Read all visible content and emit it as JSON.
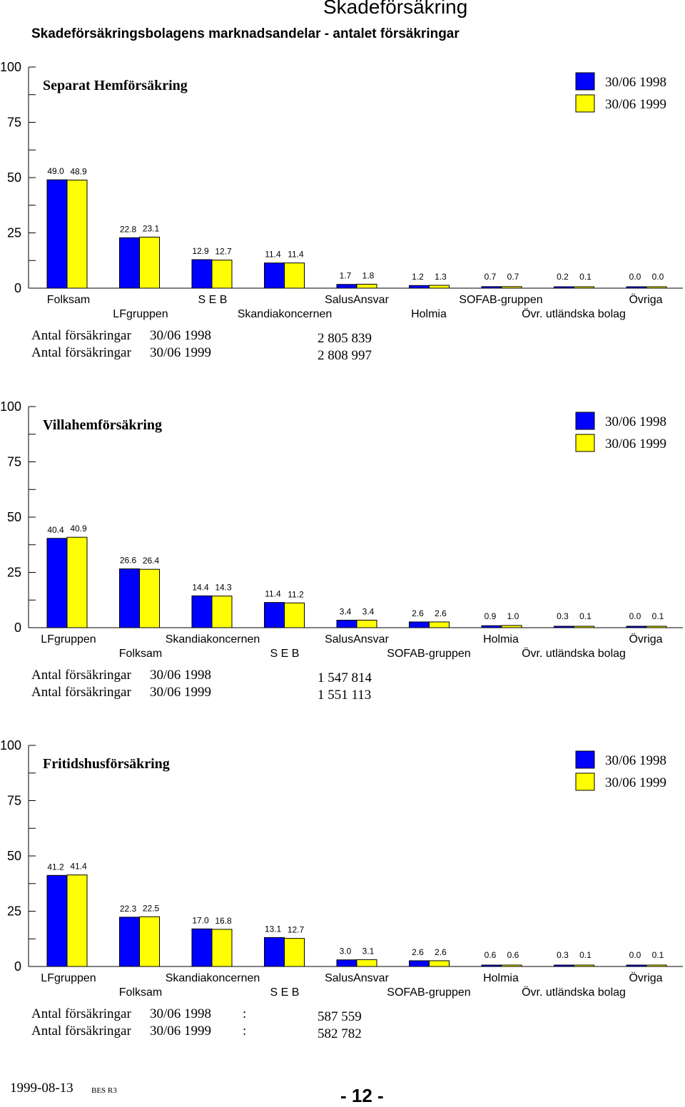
{
  "page": {
    "title": "Skadeförsäkring",
    "subtitle": "Skadeförsäkringsbolagens marknadsandelar - antalet försäkringar",
    "footer_date": "1999-08-13",
    "footer_code": "BES R3",
    "page_number": "- 12 -"
  },
  "colors": {
    "series_1998": "#0000ff",
    "series_1999": "#ffff00",
    "outline": "#000000"
  },
  "chart_data": [
    {
      "type": "bar",
      "title": "Separat Hemförsäkring",
      "ylim": [
        0,
        100
      ],
      "yticks": [
        "0",
        "25",
        "50",
        "75",
        "100"
      ],
      "categories": [
        "Folksam",
        "LFgruppen",
        "S E B",
        "Skandiakoncernen",
        "SalusAnsvar",
        "Holmia",
        "SOFAB-gruppen",
        "Övr. utländska bolag",
        "Övriga"
      ],
      "series": [
        {
          "name": "30/06 1998",
          "values": [
            49.0,
            22.8,
            12.9,
            11.4,
            1.7,
            1.2,
            0.7,
            0.2,
            0.0
          ]
        },
        {
          "name": "30/06 1999",
          "values": [
            48.9,
            23.1,
            12.7,
            11.4,
            1.8,
            1.3,
            0.7,
            0.1,
            0.0
          ]
        }
      ],
      "value_labels": {
        "s1998": [
          "49.0",
          "22.8",
          "12.9",
          "11.4",
          "1.7",
          "1.2",
          "0.7",
          "0.2",
          "0.0"
        ],
        "s1999": [
          "48.9",
          "23.1",
          "12.7",
          "11.4",
          "1.8",
          "1.3",
          "0.7",
          "0.1",
          "0.0"
        ]
      },
      "counts": [
        {
          "label": "Antal försäkringar",
          "date": "30/06 1998",
          "colon": "",
          "value": "2 805 839"
        },
        {
          "label": "Antal försäkringar",
          "date": "30/06 1999",
          "colon": "",
          "value": "2 808 997"
        }
      ]
    },
    {
      "type": "bar",
      "title": "Villahemförsäkring",
      "ylim": [
        0,
        100
      ],
      "yticks": [
        "0",
        "25",
        "50",
        "75",
        "100"
      ],
      "categories": [
        "LFgruppen",
        "Folksam",
        "Skandiakoncernen",
        "S E B",
        "SalusAnsvar",
        "SOFAB-gruppen",
        "Holmia",
        "Övr. utländska bolag",
        "Övriga"
      ],
      "series": [
        {
          "name": "30/06 1998",
          "values": [
            40.4,
            26.6,
            14.4,
            11.4,
            3.4,
            2.6,
            0.9,
            0.3,
            0.0
          ]
        },
        {
          "name": "30/06 1999",
          "values": [
            40.9,
            26.4,
            14.3,
            11.2,
            3.4,
            2.6,
            1.0,
            0.1,
            0.1
          ]
        }
      ],
      "value_labels": {
        "s1998": [
          "40.4",
          "26.6",
          "14.4",
          "11.4",
          "3.4",
          "2.6",
          "0.9",
          "0.3",
          "0.0"
        ],
        "s1999": [
          "40.9",
          "26.4",
          "14.3",
          "11.2",
          "3.4",
          "2.6",
          "1.0",
          "0.1",
          "0.1"
        ]
      },
      "counts": [
        {
          "label": "Antal försäkringar",
          "date": "30/06 1998",
          "colon": "",
          "value": "1 547 814"
        },
        {
          "label": "Antal försäkringar",
          "date": "30/06 1999",
          "colon": "",
          "value": "1 551 113"
        }
      ]
    },
    {
      "type": "bar",
      "title": "Fritidshusförsäkring",
      "ylim": [
        0,
        100
      ],
      "yticks": [
        "0",
        "25",
        "50",
        "75",
        "100"
      ],
      "categories": [
        "LFgruppen",
        "Folksam",
        "Skandiakoncernen",
        "S E B",
        "SalusAnsvar",
        "SOFAB-gruppen",
        "Holmia",
        "Övr. utländska bolag",
        "Övriga"
      ],
      "series": [
        {
          "name": "30/06 1998",
          "values": [
            41.2,
            22.3,
            17.0,
            13.1,
            3.0,
            2.6,
            0.6,
            0.3,
            0.0
          ]
        },
        {
          "name": "30/06 1999",
          "values": [
            41.4,
            22.5,
            16.8,
            12.7,
            3.1,
            2.6,
            0.6,
            0.1,
            0.1
          ]
        }
      ],
      "value_labels": {
        "s1998": [
          "41.2",
          "22.3",
          "17.0",
          "13.1",
          "3.0",
          "2.6",
          "0.6",
          "0.3",
          "0.0"
        ],
        "s1999": [
          "41.4",
          "22.5",
          "16.8",
          "12.7",
          "3.1",
          "2.6",
          "0.6",
          "0.1",
          "0.1"
        ]
      },
      "counts": [
        {
          "label": "Antal försäkringar",
          "date": "30/06 1998",
          "colon": ":",
          "value": "587 559"
        },
        {
          "label": "Antal försäkringar",
          "date": "30/06 1999",
          "colon": ":",
          "value": "582 782"
        }
      ]
    }
  ]
}
